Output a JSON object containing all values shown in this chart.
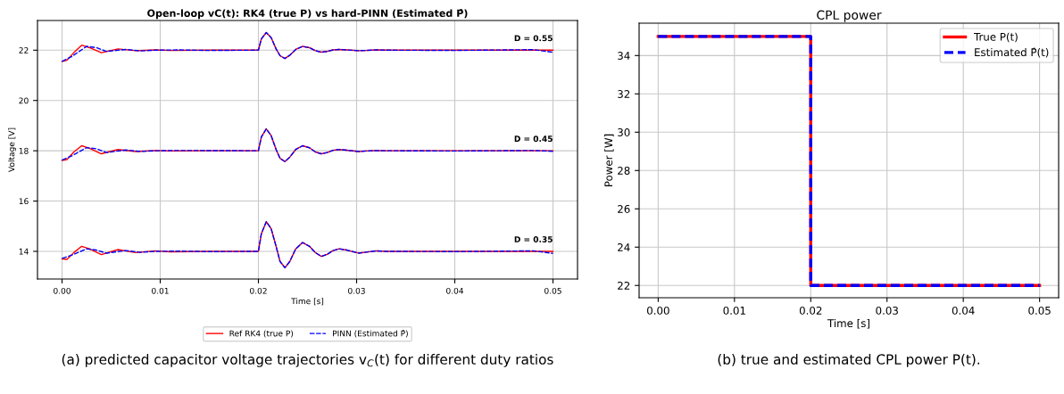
{
  "chart_data": [
    {
      "type": "line",
      "title": "Open-loop vC(t): RK4 (true P) vs hard-PINN (Estimated P̂)",
      "xlabel": "Time [s]",
      "ylabel": "Voltage [V]",
      "xlim": [
        -0.0025,
        0.0525
      ],
      "ylim": [
        12.9,
        23.18
      ],
      "xticks": [
        {
          "value": 0,
          "label": "0.00"
        },
        {
          "value": 0.01,
          "label": "0.01"
        },
        {
          "value": 0.02,
          "label": "0.02"
        },
        {
          "value": 0.03,
          "label": "0.03"
        },
        {
          "value": 0.04,
          "label": "0.04"
        },
        {
          "value": 0.05,
          "label": "0.05"
        }
      ],
      "yticks": [
        14,
        16,
        18,
        20,
        22
      ],
      "grid": true,
      "legend": "bottom",
      "series": [
        {
          "name": "Ref RK4 (true P)",
          "color": "#ff0000",
          "line_style": "solid",
          "x": [
            0,
            0.0005,
            0.0012,
            0.002,
            0.0028,
            0.004,
            0.0057,
            0.0075,
            0.0095,
            0.011,
            0.015,
            0.02,
            0.0203,
            0.0208,
            0.0213,
            0.0218,
            0.0222,
            0.0227,
            0.0232,
            0.0238,
            0.0245,
            0.0252,
            0.0258,
            0.0264,
            0.027,
            0.0276,
            0.0282,
            0.029,
            0.0302,
            0.031,
            0.032,
            0.033,
            0.04,
            0.05
          ],
          "values": [
            21.55,
            21.6,
            21.9,
            22.2,
            22.1,
            21.9,
            22.05,
            21.98,
            22.01,
            21.99,
            22.0,
            22.0,
            22.45,
            22.7,
            22.5,
            22.05,
            21.78,
            21.67,
            21.8,
            22.03,
            22.15,
            22.1,
            21.98,
            21.92,
            21.95,
            22.01,
            22.03,
            22.01,
            21.98,
            21.99,
            22.01,
            22.0,
            22.0,
            22.0
          ]
        },
        {
          "name": "PINN (Estimated P̂)",
          "color": "#0000ff",
          "line_style": "dashed",
          "x": [
            0,
            0.001,
            0.0025,
            0.0035,
            0.0045,
            0.0065,
            0.008,
            0.0095,
            0.012,
            0.015,
            0.02,
            0.0203,
            0.0208,
            0.0213,
            0.0218,
            0.0222,
            0.0227,
            0.0232,
            0.0238,
            0.0245,
            0.0252,
            0.0258,
            0.0264,
            0.027,
            0.0276,
            0.0282,
            0.029,
            0.0302,
            0.031,
            0.032,
            0.033,
            0.04,
            0.048,
            0.05
          ],
          "values": [
            21.55,
            21.75,
            22.15,
            22.1,
            21.95,
            22.03,
            21.97,
            22.0,
            22.01,
            21.99,
            22.0,
            22.45,
            22.7,
            22.5,
            22.05,
            21.78,
            21.67,
            21.8,
            22.03,
            22.15,
            22.1,
            21.98,
            21.92,
            21.95,
            22.01,
            22.03,
            22.01,
            21.98,
            21.99,
            22.01,
            22.0,
            21.99,
            22.02,
            21.92
          ]
        },
        {
          "color": "#ff0000",
          "line_style": "solid",
          "x": [
            0,
            0.0005,
            0.0012,
            0.002,
            0.0028,
            0.004,
            0.0057,
            0.0075,
            0.0095,
            0.011,
            0.015,
            0.02,
            0.0203,
            0.0208,
            0.0213,
            0.0218,
            0.0222,
            0.0227,
            0.0232,
            0.0238,
            0.0245,
            0.0252,
            0.0258,
            0.0264,
            0.027,
            0.0276,
            0.0282,
            0.029,
            0.0302,
            0.031,
            0.032,
            0.033,
            0.04,
            0.05
          ],
          "values": [
            17.62,
            17.65,
            17.95,
            18.2,
            18.1,
            17.88,
            18.05,
            17.97,
            18.01,
            17.99,
            18.0,
            18.0,
            18.55,
            18.87,
            18.6,
            18.05,
            17.7,
            17.57,
            17.75,
            18.05,
            18.2,
            18.12,
            17.95,
            17.88,
            17.93,
            18.02,
            18.05,
            18.02,
            17.97,
            17.99,
            18.01,
            18.0,
            18.0,
            18.0
          ]
        },
        {
          "color": "#0000ff",
          "line_style": "dashed",
          "x": [
            0,
            0.001,
            0.0025,
            0.0035,
            0.0045,
            0.0065,
            0.008,
            0.0095,
            0.012,
            0.02,
            0.0203,
            0.0208,
            0.0213,
            0.0218,
            0.0222,
            0.0227,
            0.0232,
            0.0238,
            0.0245,
            0.0252,
            0.0258,
            0.0264,
            0.027,
            0.0276,
            0.0282,
            0.029,
            0.0302,
            0.031,
            0.032,
            0.033,
            0.04,
            0.048,
            0.05
          ],
          "values": [
            17.63,
            17.8,
            18.12,
            18.08,
            17.93,
            18.03,
            17.97,
            18.0,
            18.01,
            18.0,
            18.55,
            18.87,
            18.6,
            18.05,
            17.7,
            17.57,
            17.75,
            18.05,
            18.2,
            18.12,
            17.95,
            17.88,
            17.93,
            18.02,
            18.05,
            18.02,
            17.97,
            17.99,
            18.01,
            18.0,
            17.99,
            18.01,
            17.98
          ]
        },
        {
          "color": "#ff0000",
          "line_style": "solid",
          "x": [
            0,
            0.0005,
            0.0012,
            0.002,
            0.0028,
            0.004,
            0.0057,
            0.0075,
            0.0095,
            0.011,
            0.015,
            0.02,
            0.0203,
            0.0208,
            0.0213,
            0.0218,
            0.0222,
            0.0227,
            0.0232,
            0.0238,
            0.0245,
            0.0252,
            0.0258,
            0.0264,
            0.027,
            0.0276,
            0.0282,
            0.029,
            0.0302,
            0.031,
            0.032,
            0.033,
            0.04,
            0.05
          ],
          "values": [
            13.7,
            13.68,
            13.95,
            14.2,
            14.1,
            13.87,
            14.07,
            13.95,
            14.02,
            13.98,
            14.0,
            14.0,
            14.7,
            15.18,
            14.9,
            14.2,
            13.6,
            13.35,
            13.6,
            14.1,
            14.35,
            14.2,
            13.95,
            13.8,
            13.88,
            14.03,
            14.1,
            14.05,
            13.93,
            13.97,
            14.02,
            14.0,
            14.0,
            14.0
          ]
        },
        {
          "color": "#0000ff",
          "line_style": "dashed",
          "x": [
            0,
            0.001,
            0.0025,
            0.0035,
            0.0045,
            0.0065,
            0.008,
            0.0095,
            0.012,
            0.015,
            0.02,
            0.0203,
            0.0208,
            0.0213,
            0.0218,
            0.0222,
            0.0227,
            0.0232,
            0.0238,
            0.0245,
            0.0252,
            0.0258,
            0.0264,
            0.027,
            0.0276,
            0.0282,
            0.029,
            0.0302,
            0.031,
            0.032,
            0.033,
            0.04,
            0.048,
            0.05
          ],
          "values": [
            13.72,
            13.85,
            14.1,
            14.05,
            13.93,
            14.03,
            13.96,
            14.0,
            14.01,
            13.99,
            14.0,
            14.7,
            15.18,
            14.9,
            14.2,
            13.6,
            13.35,
            13.6,
            14.1,
            14.35,
            14.2,
            13.95,
            13.8,
            13.88,
            14.03,
            14.1,
            14.05,
            13.93,
            13.97,
            14.02,
            14.0,
            13.99,
            14.02,
            13.92
          ]
        }
      ],
      "annotations": [
        "D = 0.55",
        "D = 0.45",
        "D = 0.35",
        "(a) predicted capacitor voltage trajectories v$_{C}$(t) for different duty ratios"
      ]
    },
    {
      "type": "step",
      "title": "CPL power",
      "xlabel": "Time [s]",
      "ylabel": "Power [W]",
      "xlim": [
        -0.0025,
        0.0525
      ],
      "ylim": [
        21.36,
        35.69
      ],
      "xticks": [
        {
          "value": 0,
          "label": "0.00"
        },
        {
          "value": 0.01,
          "label": "0.01"
        },
        {
          "value": 0.02,
          "label": "0.02"
        },
        {
          "value": 0.03,
          "label": "0.03"
        },
        {
          "value": 0.04,
          "label": "0.04"
        },
        {
          "value": 0.05,
          "label": "0.05"
        }
      ],
      "yticks": [
        22,
        24,
        26,
        28,
        30,
        32,
        34
      ],
      "grid": true,
      "legend": "top right",
      "x": [
        0,
        0.02,
        0.05
      ],
      "series": [
        {
          "name": "True P(t)",
          "color": "#ff0000",
          "line_style": "solid",
          "values": [
            35,
            22,
            22
          ]
        },
        {
          "name": "Estimated P̂(t)",
          "color": "#0000ff",
          "line_style": "dashed",
          "values": [
            35,
            22,
            22
          ]
        }
      ],
      "annotations": [
        "(b) true and estimated CPL power P(t)."
      ]
    }
  ]
}
